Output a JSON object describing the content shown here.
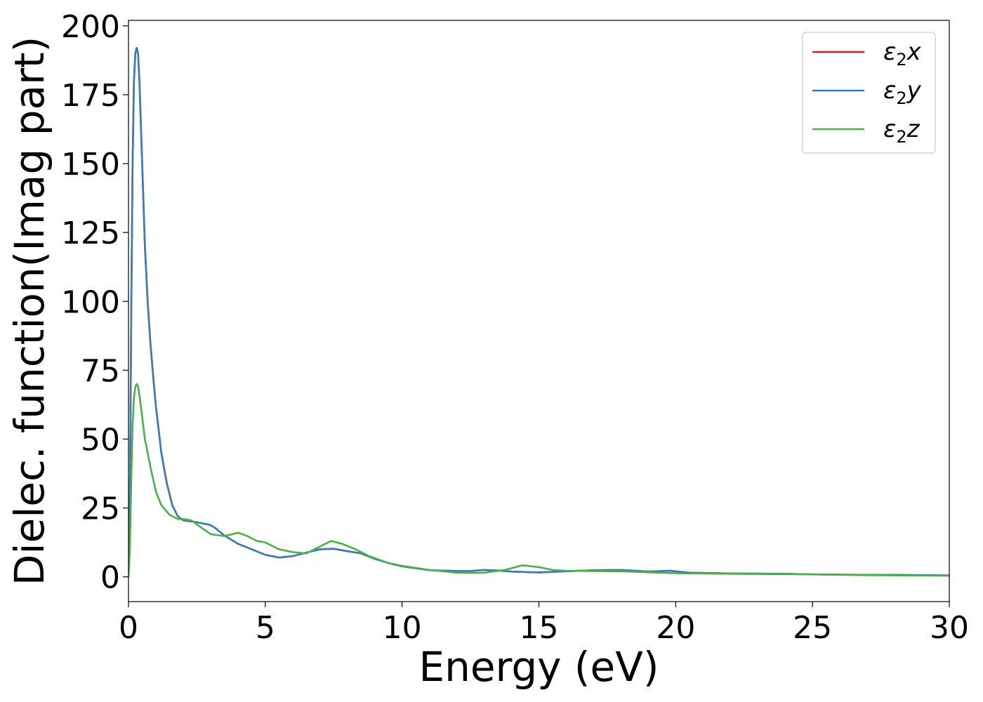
{
  "chart_data": {
    "type": "line",
    "title": "",
    "xlabel": "Energy (eV)",
    "ylabel": "Dielec. function(Imag part)",
    "xlim": [
      0,
      30
    ],
    "ylim": [
      -9,
      202
    ],
    "xticks": [
      "0",
      "5",
      "10",
      "15",
      "20",
      "25",
      "30"
    ],
    "yticks": [
      "0",
      "25",
      "50",
      "75",
      "100",
      "125",
      "150",
      "175",
      "200"
    ],
    "grid": false,
    "legend_position": "top-right",
    "series": [
      {
        "name": "ε₂x",
        "legend_base": "ε",
        "legend_sub": "2",
        "legend_tail": "x",
        "color": "#e41a1c",
        "points": [
          [
            0,
            0
          ],
          [
            0.05,
            25
          ],
          [
            0.1,
            95
          ],
          [
            0.15,
            150
          ],
          [
            0.2,
            180
          ],
          [
            0.25,
            190
          ],
          [
            0.3,
            192
          ],
          [
            0.35,
            190
          ],
          [
            0.4,
            180
          ],
          [
            0.5,
            150
          ],
          [
            0.6,
            120
          ],
          [
            0.7,
            100
          ],
          [
            0.8,
            85
          ],
          [
            0.9,
            73
          ],
          [
            1.0,
            62
          ],
          [
            1.2,
            45
          ],
          [
            1.4,
            34
          ],
          [
            1.6,
            26
          ],
          [
            1.8,
            22
          ],
          [
            2.0,
            20.5
          ],
          [
            2.5,
            19.8
          ],
          [
            3.0,
            18.8
          ],
          [
            3.2,
            17.5
          ],
          [
            3.5,
            15
          ],
          [
            4.0,
            12
          ],
          [
            4.5,
            10
          ],
          [
            5.0,
            8
          ],
          [
            5.5,
            7
          ],
          [
            6.0,
            7.5
          ],
          [
            6.5,
            8.8
          ],
          [
            7.0,
            10
          ],
          [
            7.5,
            10.2
          ],
          [
            8.0,
            9.3
          ],
          [
            8.5,
            8.5
          ],
          [
            9.0,
            6.5
          ],
          [
            9.5,
            5
          ],
          [
            10.0,
            3.8
          ],
          [
            11.0,
            2.4
          ],
          [
            12.0,
            2.1
          ],
          [
            12.5,
            2.1
          ],
          [
            13.0,
            2.5
          ],
          [
            13.5,
            2.3
          ],
          [
            14.0,
            1.9
          ],
          [
            15.0,
            1.6
          ],
          [
            16.0,
            2.0
          ],
          [
            17.0,
            2.4
          ],
          [
            18.0,
            2.5
          ],
          [
            19.0,
            1.9
          ],
          [
            19.8,
            2.2
          ],
          [
            20.5,
            1.5
          ],
          [
            22.0,
            1.2
          ],
          [
            24.0,
            1.1
          ],
          [
            25.0,
            0.9
          ],
          [
            27.0,
            0.7
          ],
          [
            28.0,
            0.7
          ],
          [
            30.0,
            0.5
          ]
        ]
      },
      {
        "name": "ε₂y",
        "legend_base": "ε",
        "legend_sub": "2",
        "legend_tail": "y",
        "color": "#377eb8",
        "points": [
          [
            0,
            0
          ],
          [
            0.05,
            25
          ],
          [
            0.1,
            95
          ],
          [
            0.15,
            150
          ],
          [
            0.2,
            180
          ],
          [
            0.25,
            190
          ],
          [
            0.3,
            192
          ],
          [
            0.35,
            190
          ],
          [
            0.4,
            180
          ],
          [
            0.5,
            150
          ],
          [
            0.6,
            120
          ],
          [
            0.7,
            100
          ],
          [
            0.8,
            85
          ],
          [
            0.9,
            73
          ],
          [
            1.0,
            62
          ],
          [
            1.2,
            45
          ],
          [
            1.4,
            34
          ],
          [
            1.6,
            26
          ],
          [
            1.8,
            22
          ],
          [
            2.0,
            20.5
          ],
          [
            2.5,
            19.8
          ],
          [
            3.0,
            18.8
          ],
          [
            3.2,
            17.5
          ],
          [
            3.5,
            15
          ],
          [
            4.0,
            12
          ],
          [
            4.5,
            10
          ],
          [
            5.0,
            8
          ],
          [
            5.5,
            7
          ],
          [
            6.0,
            7.5
          ],
          [
            6.5,
            8.8
          ],
          [
            7.0,
            10
          ],
          [
            7.5,
            10.2
          ],
          [
            8.0,
            9.3
          ],
          [
            8.5,
            8.5
          ],
          [
            9.0,
            6.5
          ],
          [
            9.5,
            5
          ],
          [
            10.0,
            3.8
          ],
          [
            11.0,
            2.4
          ],
          [
            12.0,
            2.1
          ],
          [
            12.5,
            2.1
          ],
          [
            13.0,
            2.5
          ],
          [
            13.5,
            2.3
          ],
          [
            14.0,
            1.9
          ],
          [
            15.0,
            1.6
          ],
          [
            16.0,
            2.0
          ],
          [
            17.0,
            2.4
          ],
          [
            18.0,
            2.5
          ],
          [
            19.0,
            1.9
          ],
          [
            19.8,
            2.2
          ],
          [
            20.5,
            1.5
          ],
          [
            22.0,
            1.2
          ],
          [
            24.0,
            1.1
          ],
          [
            25.0,
            0.9
          ],
          [
            27.0,
            0.7
          ],
          [
            28.0,
            0.7
          ],
          [
            30.0,
            0.5
          ]
        ]
      },
      {
        "name": "ε₂z",
        "legend_base": "ε",
        "legend_sub": "2",
        "legend_tail": "z",
        "color": "#4daf4a",
        "points": [
          [
            0,
            0
          ],
          [
            0.05,
            10
          ],
          [
            0.1,
            35
          ],
          [
            0.15,
            55
          ],
          [
            0.2,
            65
          ],
          [
            0.25,
            69
          ],
          [
            0.3,
            70
          ],
          [
            0.35,
            69
          ],
          [
            0.4,
            66
          ],
          [
            0.5,
            58
          ],
          [
            0.6,
            50
          ],
          [
            0.8,
            40
          ],
          [
            1.0,
            31
          ],
          [
            1.2,
            26
          ],
          [
            1.5,
            22.5
          ],
          [
            1.8,
            21
          ],
          [
            2.0,
            21
          ],
          [
            2.3,
            20.5
          ],
          [
            2.5,
            19
          ],
          [
            3.0,
            15.5
          ],
          [
            3.5,
            14.8
          ],
          [
            3.8,
            15.5
          ],
          [
            4.0,
            16
          ],
          [
            4.3,
            15
          ],
          [
            4.7,
            13
          ],
          [
            5.0,
            12.5
          ],
          [
            5.5,
            10
          ],
          [
            6.0,
            9
          ],
          [
            6.5,
            8.5
          ],
          [
            7.0,
            11
          ],
          [
            7.4,
            13
          ],
          [
            7.8,
            12
          ],
          [
            8.3,
            10
          ],
          [
            8.8,
            7.5
          ],
          [
            9.5,
            5
          ],
          [
            10.0,
            4
          ],
          [
            11.0,
            2.5
          ],
          [
            12.0,
            1.5
          ],
          [
            12.5,
            1.4
          ],
          [
            13.0,
            1.5
          ],
          [
            13.8,
            2.6
          ],
          [
            14.4,
            4.2
          ],
          [
            15.0,
            3.5
          ],
          [
            15.5,
            2.5
          ],
          [
            16.0,
            2.2
          ],
          [
            18.0,
            2.0
          ],
          [
            20.0,
            1.3
          ],
          [
            22.0,
            1.1
          ],
          [
            25.0,
            0.9
          ],
          [
            27.0,
            0.6
          ],
          [
            30.0,
            0.4
          ]
        ]
      }
    ]
  }
}
